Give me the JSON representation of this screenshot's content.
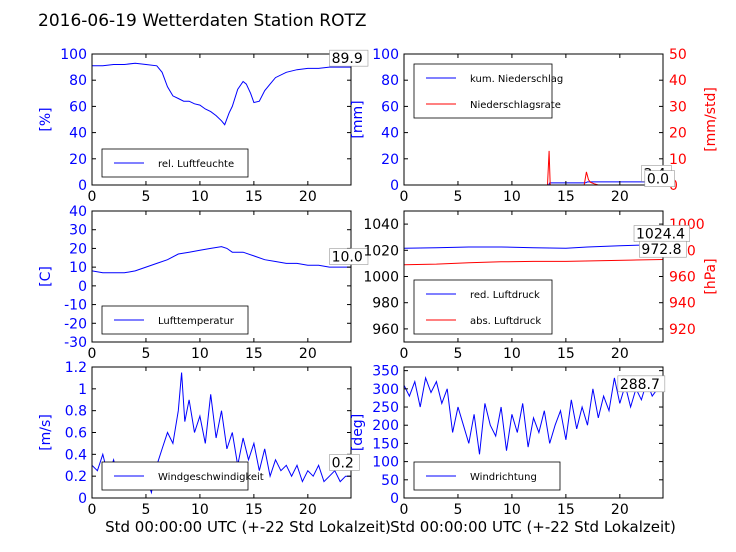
{
  "page": {
    "title": "2016-06-19 Wetterdaten Station ROTZ "
  },
  "chart_data": [
    {
      "type": "line",
      "id": "humidity",
      "ylabel": "[%]",
      "ylabel_color": "#0000ff",
      "xlim": [
        0,
        24
      ],
      "ylim": [
        0,
        100
      ],
      "xticks": [
        0,
        5,
        10,
        15,
        20
      ],
      "yticks": [
        0,
        20,
        40,
        60,
        80,
        100
      ],
      "ytick_color": "#0000ff",
      "legend": {
        "placement": "lower-left",
        "entries": [
          {
            "label": "rel. Luftfeuchte",
            "color": "#0000ff"
          }
        ]
      },
      "series": [
        {
          "name": "rel. Luftfeuchte",
          "color": "#0000ff",
          "x": [
            0,
            1,
            2,
            3,
            4,
            5,
            6,
            6.5,
            7,
            7.5,
            8,
            8.5,
            9,
            9.5,
            10,
            10.5,
            11,
            11.5,
            12,
            12.3,
            12.7,
            13,
            13.5,
            14,
            14.3,
            14.7,
            15,
            15.5,
            16,
            16.5,
            17,
            18,
            19,
            20,
            21,
            22,
            23,
            24
          ],
          "y": [
            91,
            91,
            92,
            92,
            93,
            92,
            91,
            86,
            75,
            68,
            66,
            64,
            64,
            62,
            61,
            58,
            56,
            53,
            49,
            46,
            55,
            60,
            73,
            79,
            77,
            70,
            63,
            64,
            72,
            77,
            82,
            86,
            88,
            89,
            89,
            90,
            90,
            90
          ]
        }
      ],
      "annotations": [
        {
          "text": "89.9",
          "x": 22.2,
          "y": 93
        }
      ]
    },
    {
      "type": "line",
      "id": "precip",
      "ylabel": "[mm]",
      "ylabel_color": "#0000ff",
      "ylabel2": "[mm/std]",
      "ylabel2_color": "#ff0000",
      "xlim": [
        0,
        24
      ],
      "ylim": [
        0,
        100
      ],
      "ylim2": [
        0,
        50
      ],
      "xticks": [
        0,
        5,
        10,
        15,
        20
      ],
      "yticks": [
        0,
        20,
        40,
        60,
        80,
        100
      ],
      "ytick_color": "#0000ff",
      "yticks2": [
        0,
        10,
        20,
        30,
        40,
        50
      ],
      "ytick2_color": "#ff0000",
      "legend": {
        "placement": "upper-left",
        "entries": [
          {
            "label": "kum. Niederschlag",
            "color": "#0000ff"
          },
          {
            "label": "Niederschlagsrate",
            "color": "#ff0000"
          }
        ]
      },
      "series": [
        {
          "name": "kum. Niederschlag",
          "color": "#0000ff",
          "axis": "left",
          "x": [
            0,
            13.4,
            13.5,
            16.8,
            17,
            24
          ],
          "y": [
            0,
            0,
            1.6,
            1.6,
            2.4,
            2.4
          ]
        },
        {
          "name": "Niederschlagsrate",
          "color": "#ff0000",
          "axis": "right",
          "x": [
            0,
            13.3,
            13.45,
            13.55,
            13.7,
            16.7,
            16.9,
            17.1,
            17.3,
            17.6,
            18,
            24
          ],
          "y": [
            0,
            0,
            13,
            0,
            0,
            0,
            5,
            2,
            1,
            0.5,
            0,
            0
          ]
        }
      ],
      "annotations": [
        {
          "text": "2.4",
          "x": 22.2,
          "y": 5
        },
        {
          "text": "0.0",
          "x": 22.5,
          "y": 1
        }
      ]
    },
    {
      "type": "line",
      "id": "temperature",
      "ylabel": "[C]",
      "ylabel_color": "#0000ff",
      "xlim": [
        0,
        24
      ],
      "ylim": [
        -30,
        40
      ],
      "xticks": [
        0,
        5,
        10,
        15,
        20
      ],
      "yticks": [
        -30,
        -20,
        -10,
        0,
        10,
        20,
        30,
        40
      ],
      "ytick_color": "#0000ff",
      "legend": {
        "placement": "lower-left",
        "entries": [
          {
            "label": "Lufttemperatur",
            "color": "#0000ff"
          }
        ]
      },
      "series": [
        {
          "name": "Lufttemperatur",
          "color": "#0000ff",
          "x": [
            0,
            1,
            2,
            3,
            4,
            5,
            6,
            7,
            8,
            9,
            10,
            11,
            12,
            12.5,
            13,
            14,
            15,
            16,
            17,
            18,
            19,
            20,
            21,
            22,
            23,
            24
          ],
          "y": [
            8,
            7,
            7,
            7,
            8,
            10,
            12,
            14,
            17,
            18,
            19,
            20,
            21,
            20,
            18,
            18,
            16,
            14,
            13,
            12,
            12,
            11,
            11,
            10,
            10,
            10
          ]
        }
      ],
      "annotations": [
        {
          "text": "10.0",
          "x": 22.2,
          "y": 13
        }
      ]
    },
    {
      "type": "line",
      "id": "pressure",
      "ylabel2": "[hPa]",
      "ylabel2_color": "#ff0000",
      "xlim": [
        0,
        24
      ],
      "ylim": [
        950,
        1050
      ],
      "ylim2": [
        910,
        1010
      ],
      "xticks": [
        0,
        5,
        10,
        15,
        20
      ],
      "yticks": [
        960,
        980,
        1000,
        1020,
        1040
      ],
      "ytick_color": "#000000",
      "yticks2": [
        920,
        940,
        960,
        980,
        1000
      ],
      "ytick2_color": "#ff0000",
      "legend": {
        "placement": "lower-left",
        "entries": [
          {
            "label": "red. Luftdruck",
            "color": "#0000ff"
          },
          {
            "label": "abs. Luftdruck",
            "color": "#ff0000"
          }
        ]
      },
      "series": [
        {
          "name": "red. Luftdruck",
          "color": "#0000ff",
          "axis": "left",
          "x": [
            0,
            3,
            6,
            9,
            12,
            15,
            17,
            20,
            22,
            24
          ],
          "y": [
            1021.5,
            1022,
            1022.5,
            1022.5,
            1022,
            1021.5,
            1022.5,
            1023.5,
            1024,
            1024.5
          ]
        },
        {
          "name": "abs. Luftdruck",
          "color": "#ff0000",
          "axis": "right",
          "x": [
            0,
            3,
            6,
            9,
            12,
            15,
            18,
            21,
            24
          ],
          "y": [
            969,
            969.5,
            970.5,
            971.2,
            971.5,
            971.5,
            972,
            972.5,
            973
          ]
        }
      ],
      "annotations": [
        {
          "text": "1024.4",
          "x": 21.5,
          "y": 1029
        },
        {
          "text": "972.8",
          "x": 22.0,
          "y": 1017
        }
      ]
    },
    {
      "type": "line",
      "id": "windspeed",
      "ylabel": "[m/s]",
      "ylabel_color": "#0000ff",
      "xlim": [
        0,
        24
      ],
      "ylim": [
        0,
        1.2
      ],
      "xticks": [
        0,
        5,
        10,
        15,
        20
      ],
      "yticks": [
        0.0,
        0.2,
        0.4,
        0.6,
        0.8,
        1.0,
        1.2
      ],
      "ytick_color": "#0000ff",
      "legend": {
        "placement": "lower-left",
        "entries": [
          {
            "label": "Windgeschwindigkeit",
            "color": "#0000ff"
          }
        ]
      },
      "series": [
        {
          "name": "Windgeschwindigkeit",
          "color": "#0000ff",
          "x": [
            0,
            0.5,
            1,
            1.5,
            2,
            2.5,
            3,
            3.5,
            4,
            4.5,
            5,
            5.5,
            6,
            6.5,
            7,
            7.5,
            8,
            8.3,
            8.6,
            9,
            9.5,
            10,
            10.5,
            11,
            11.5,
            12,
            12.5,
            13,
            13.5,
            14,
            14.5,
            15,
            15.5,
            16,
            16.5,
            17,
            17.5,
            18,
            18.5,
            19,
            19.5,
            20,
            20.5,
            21,
            21.5,
            22,
            22.5,
            23,
            23.5,
            24
          ],
          "y": [
            0.3,
            0.25,
            0.4,
            0.2,
            0.35,
            0.15,
            0.3,
            0.2,
            0.25,
            0.1,
            0.2,
            0.05,
            0.3,
            0.45,
            0.6,
            0.5,
            0.8,
            1.15,
            0.7,
            0.9,
            0.6,
            0.75,
            0.5,
            0.95,
            0.55,
            0.8,
            0.45,
            0.6,
            0.3,
            0.55,
            0.35,
            0.5,
            0.25,
            0.45,
            0.2,
            0.35,
            0.25,
            0.3,
            0.2,
            0.3,
            0.15,
            0.25,
            0.2,
            0.3,
            0.15,
            0.2,
            0.25,
            0.15,
            0.2,
            0.2
          ]
        }
      ],
      "annotations": [
        {
          "text": "0.2",
          "x": 22.2,
          "y": 0.28
        }
      ]
    },
    {
      "type": "line",
      "id": "winddir",
      "ylabel": "[deg]",
      "ylabel_color": "#0000ff",
      "xlim": [
        0,
        24
      ],
      "ylim": [
        0,
        360
      ],
      "xticks": [
        0,
        5,
        10,
        15,
        20
      ],
      "yticks": [
        0,
        50,
        100,
        150,
        200,
        250,
        300,
        350
      ],
      "ytick_color": "#0000ff",
      "legend": {
        "placement": "lower-left",
        "entries": [
          {
            "label": "Windrichtung",
            "color": "#0000ff"
          }
        ]
      },
      "series": [
        {
          "name": "Windrichtung",
          "color": "#0000ff",
          "x": [
            0,
            0.5,
            1,
            1.5,
            2,
            2.5,
            3,
            3.5,
            4,
            4.5,
            5,
            5.5,
            6,
            6.5,
            7,
            7.5,
            8,
            8.5,
            9,
            9.5,
            10,
            10.5,
            11,
            11.5,
            12,
            12.5,
            13,
            13.5,
            14,
            14.5,
            15,
            15.5,
            16,
            16.5,
            17,
            17.5,
            18,
            18.5,
            19,
            19.5,
            20,
            20.5,
            21,
            21.5,
            22,
            22.5,
            23,
            23.5,
            24
          ],
          "y": [
            310,
            280,
            320,
            250,
            330,
            290,
            320,
            260,
            300,
            180,
            250,
            200,
            150,
            230,
            120,
            260,
            200,
            170,
            250,
            130,
            230,
            180,
            260,
            140,
            220,
            180,
            240,
            150,
            200,
            240,
            160,
            270,
            190,
            250,
            200,
            300,
            220,
            280,
            240,
            330,
            260,
            310,
            250,
            300,
            270,
            320,
            280,
            300,
            300
          ]
        }
      ],
      "annotations": [
        {
          "text": "288.7",
          "x": 20.0,
          "y": 300
        }
      ]
    }
  ],
  "xlabel": "Std 00:00:00 UTC (+-22 Std Lokalzeit)"
}
